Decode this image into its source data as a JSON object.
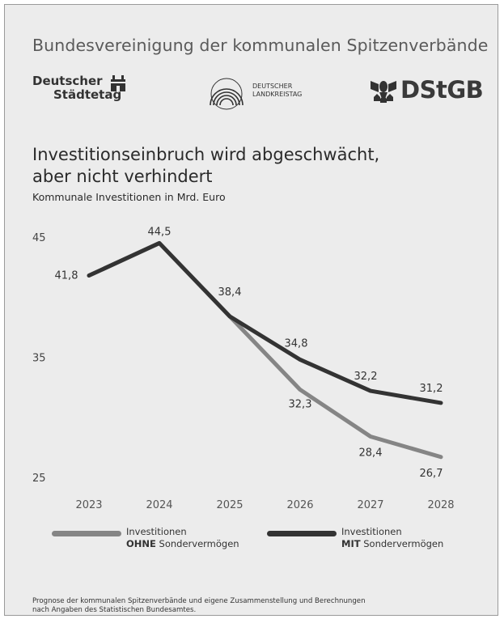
{
  "header": {
    "organization": "Bundesvereinigung der kommunalen Spitzenverbände"
  },
  "logos": {
    "staedtetag": {
      "line1": "Deutscher",
      "line2": "Städtetag"
    },
    "landkreistag": {
      "line1": "DEUTSCHER",
      "line2": "LANDKREISTAG"
    },
    "dstgb": {
      "text": "DStGB"
    }
  },
  "chart_data": {
    "type": "line",
    "title_line1": "Investitionseinbruch wird abgeschwächt,",
    "title_line2": "aber nicht verhindert",
    "subtitle": "Kommunale Investitionen in Mrd. Euro",
    "x": [
      "2023",
      "2024",
      "2025",
      "2026",
      "2027",
      "2028"
    ],
    "y_ticks": [
      "45",
      "35",
      "25"
    ],
    "ylim": [
      25,
      45
    ],
    "series": [
      {
        "name_part1": "Investitionen",
        "name_bold": "OHNE",
        "name_rest": " Sondervermögen",
        "color": "#858585",
        "values": [
          41.8,
          44.5,
          38.4,
          32.3,
          28.4,
          26.7
        ],
        "labels": [
          "41,8",
          "44,5",
          "38,4",
          "32,3",
          "28,4",
          "26,7"
        ]
      },
      {
        "name_part1": "Investitionen",
        "name_bold": "MIT",
        "name_rest": " Sondervermögen",
        "color": "#333333",
        "values": [
          41.8,
          44.5,
          38.4,
          34.8,
          32.2,
          31.2
        ],
        "labels": [
          "41,8",
          "44,5",
          "38,4",
          "34,8",
          "32,2",
          "31,2"
        ]
      }
    ],
    "grid": false,
    "legend": "bottom"
  },
  "footnote": {
    "line1": "Prognose der kommunalen Spitzenverbände und eigene Zusammenstellung und Berechnungen",
    "line2": "nach Angaben des Statistischen Bundesamtes."
  }
}
